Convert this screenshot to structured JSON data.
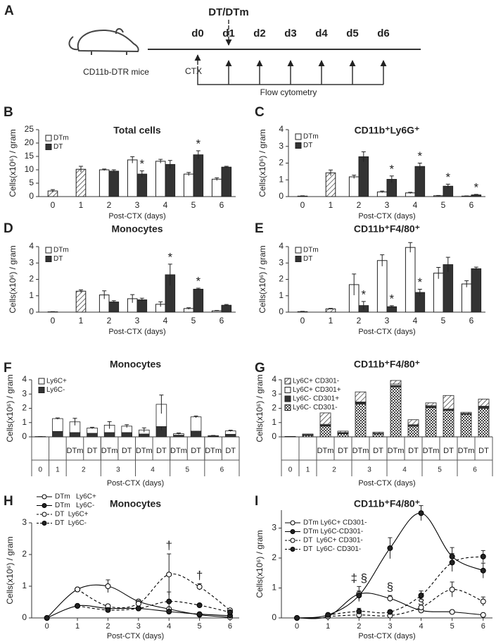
{
  "panel_a": {
    "panel": "A",
    "top_label": "DT/DTm",
    "days": [
      "d0",
      "d1",
      "d2",
      "d3",
      "d4",
      "d5",
      "d6"
    ],
    "mouse_label": "CD11b-DTR mice",
    "start_label": "CTX",
    "readout_label": "Flow cytometry"
  },
  "chart_data": [
    {
      "panel": "B",
      "type": "bar",
      "title": "Total cells",
      "y_label": "Cells(x10⁶) / gram",
      "x_label": "Post-CTX (days)",
      "categories": [
        "0",
        "1",
        "2",
        "3",
        "4",
        "5",
        "6"
      ],
      "ylim": [
        0,
        25
      ],
      "yticks": [
        0,
        5,
        10,
        15,
        20,
        25
      ],
      "series": [
        {
          "color": "#ffffff",
          "pattern": "hatch",
          "values": [
            2.1,
            10.2,
            null,
            null,
            null,
            null,
            null
          ],
          "errors": [
            0.5,
            1.1,
            null,
            null,
            null,
            null,
            null
          ]
        },
        {
          "name": "DTm",
          "color": "#ffffff",
          "values": [
            null,
            null,
            10.0,
            13.7,
            13.2,
            8.4,
            6.5
          ],
          "errors": [
            null,
            null,
            0.3,
            1.2,
            0.7,
            0.6,
            0.5
          ]
        },
        {
          "name": "DT",
          "color": "#333333",
          "values": [
            null,
            null,
            9.5,
            8.4,
            12.0,
            15.6,
            11.0
          ],
          "errors": [
            null,
            null,
            0.5,
            1.2,
            1.5,
            1.5,
            0.3
          ],
          "annotations": [
            null,
            null,
            null,
            "*",
            null,
            "*",
            null
          ]
        }
      ]
    },
    {
      "panel": "C",
      "type": "bar",
      "title": "CD11b⁺Ly6G⁺",
      "y_label": "Cells(x10⁶) / gram",
      "x_label": "Post-CTX (days)",
      "categories": [
        "0",
        "1",
        "2",
        "3",
        "4",
        "5",
        "6"
      ],
      "ylim": [
        0,
        4
      ],
      "yticks": [
        0,
        1,
        2,
        3,
        4
      ],
      "series": [
        {
          "color": "#ffffff",
          "pattern": "hatch",
          "values": [
            0.03,
            1.42,
            null,
            null,
            null,
            null,
            null
          ],
          "errors": [
            0.02,
            0.17,
            null,
            null,
            null,
            null,
            null
          ]
        },
        {
          "name": "DTm",
          "color": "#ffffff",
          "values": [
            null,
            null,
            1.18,
            0.28,
            0.22,
            0.05,
            0.03
          ],
          "errors": [
            null,
            null,
            0.1,
            0.05,
            0.04,
            0.02,
            0.01
          ]
        },
        {
          "name": "DT",
          "color": "#333333",
          "values": [
            null,
            null,
            2.38,
            1.03,
            1.8,
            0.62,
            0.1
          ],
          "errors": [
            null,
            null,
            0.3,
            0.2,
            0.2,
            0.12,
            0.03
          ],
          "annotations": [
            null,
            null,
            null,
            "*",
            "*",
            "*",
            "*"
          ]
        }
      ]
    },
    {
      "panel": "D",
      "type": "bar",
      "title": "Monocytes",
      "y_label": "Cells(x10⁶) / gram",
      "x_label": "Post-CTX (days)",
      "categories": [
        "0",
        "1",
        "2",
        "3",
        "4",
        "5",
        "6"
      ],
      "ylim": [
        0,
        4
      ],
      "yticks": [
        0,
        1,
        2,
        3,
        4
      ],
      "series": [
        {
          "color": "#ffffff",
          "pattern": "hatch",
          "values": [
            0.02,
            1.28,
            null,
            null,
            null,
            null,
            null
          ],
          "errors": [
            0.01,
            0.08,
            null,
            null,
            null,
            null,
            null
          ]
        },
        {
          "name": "DTm",
          "color": "#ffffff",
          "values": [
            null,
            null,
            1.05,
            0.82,
            0.48,
            0.22,
            0.08
          ],
          "errors": [
            null,
            null,
            0.25,
            0.25,
            0.15,
            0.05,
            0.02
          ]
        },
        {
          "name": "DT",
          "color": "#333333",
          "values": [
            null,
            null,
            0.62,
            0.75,
            2.28,
            1.4,
            0.42
          ],
          "errors": [
            null,
            null,
            0.08,
            0.1,
            0.65,
            0.06,
            0.05
          ],
          "annotations": [
            null,
            null,
            null,
            null,
            "*",
            "*",
            null
          ]
        }
      ]
    },
    {
      "panel": "E",
      "type": "bar",
      "title": "CD11b⁺F4/80⁺",
      "y_label": "Cells(x10⁶) / gram",
      "x_label": "Post-CTX (days)",
      "categories": [
        "0",
        "1",
        "2",
        "3",
        "4",
        "5",
        "6"
      ],
      "ylim": [
        0,
        4
      ],
      "yticks": [
        0,
        1,
        2,
        3,
        4
      ],
      "series": [
        {
          "color": "#ffffff",
          "pattern": "hatch",
          "values": [
            0.03,
            0.2,
            null,
            null,
            null,
            null,
            null
          ],
          "errors": [
            0.02,
            0.03,
            null,
            null,
            null,
            null,
            null
          ]
        },
        {
          "name": "DTm",
          "color": "#ffffff",
          "values": [
            null,
            null,
            1.68,
            3.15,
            3.95,
            2.38,
            1.72
          ],
          "errors": [
            null,
            null,
            0.65,
            0.35,
            0.3,
            0.35,
            0.2
          ]
        },
        {
          "name": "DT",
          "color": "#333333",
          "values": [
            null,
            null,
            0.4,
            0.33,
            1.2,
            2.9,
            2.65
          ],
          "errors": [
            null,
            null,
            0.25,
            0.06,
            0.2,
            0.45,
            0.1
          ],
          "annotations": [
            null,
            null,
            "*",
            "*",
            "*",
            null,
            null
          ]
        }
      ]
    },
    {
      "panel": "F",
      "type": "stacked_bar",
      "title": "Monocytes",
      "y_label": "Cells(x10⁶) / gram",
      "x_label": "Post-CTX (days)",
      "categories": [
        null,
        null,
        "DTm",
        "DT",
        "DTm",
        "DT",
        "DTm",
        "DT",
        "DTm",
        "DT",
        "DTm",
        "DT"
      ],
      "groups": [
        {
          "label": "0",
          "span": 1
        },
        {
          "label": "1",
          "span": 1
        },
        {
          "label": "2",
          "span": 2
        },
        {
          "label": "3",
          "span": 2
        },
        {
          "label": "4",
          "span": 2
        },
        {
          "label": "5",
          "span": 2
        },
        {
          "label": "6",
          "span": 2
        }
      ],
      "ylim": [
        0,
        4
      ],
      "yticks": [
        0,
        1,
        2,
        3,
        4
      ],
      "series": [
        {
          "name": "Ly6C+",
          "color": "#ffffff",
          "values": [
            0.01,
            0.9,
            0.75,
            0.37,
            0.52,
            0.45,
            0.28,
            1.56,
            0.1,
            1.0,
            0.01,
            0.24
          ],
          "errors": [
            0,
            0.05,
            0.25,
            0.05,
            0.25,
            0.1,
            0.15,
            0.65,
            0.05,
            0.06,
            0.02,
            0.05
          ]
        },
        {
          "name": "Ly6C-",
          "color": "#333333",
          "values": [
            0.01,
            0.38,
            0.3,
            0.25,
            0.3,
            0.3,
            0.2,
            0.72,
            0.12,
            0.4,
            0.07,
            0.18
          ],
          "errors": [
            0,
            0.04,
            0.05,
            0.03,
            0.05,
            0.05,
            0.04,
            0.25,
            0.02,
            0.05,
            0.01,
            0.03
          ]
        }
      ]
    },
    {
      "panel": "G",
      "type": "stacked_bar",
      "title": "CD11b⁺F4/80⁺",
      "y_label": "Cells(x10⁶) / gram",
      "x_label": "Post-CTX (days)",
      "categories": [
        null,
        null,
        "DTm",
        "DT",
        "DTm",
        "DT",
        "DTm",
        "DT",
        "DTm",
        "DT",
        "DTm",
        "DT"
      ],
      "groups": [
        {
          "label": "0",
          "span": 1
        },
        {
          "label": "1",
          "span": 1
        },
        {
          "label": "2",
          "span": 2
        },
        {
          "label": "3",
          "span": 2
        },
        {
          "label": "4",
          "span": 2
        },
        {
          "label": "5",
          "span": 2
        },
        {
          "label": "6",
          "span": 2
        }
      ],
      "ylim": [
        0,
        4
      ],
      "yticks": [
        0,
        1,
        2,
        3,
        4
      ],
      "series": [
        {
          "name": "Ly6C+ CD301-",
          "color": "#ffffff",
          "pattern": "hatch",
          "values": [
            0.01,
            0.05,
            0.8,
            0.1,
            0.7,
            0.08,
            0.25,
            0.35,
            0.2,
            0.95,
            0.08,
            0.5
          ]
        },
        {
          "name": "Ly6C+ CD301+",
          "color": "#ffffff",
          "values": [
            0,
            0.03,
            0.05,
            0.03,
            0.05,
            0.02,
            0.1,
            0.05,
            0.05,
            0.05,
            0.02,
            0.05
          ]
        },
        {
          "name": "Ly6C- CD301+",
          "color": "#333333",
          "values": [
            0,
            0.02,
            0.08,
            0.05,
            0.1,
            0.03,
            0.1,
            0.05,
            0.08,
            0.05,
            0.04,
            0.1
          ]
        },
        {
          "name": "Ly6C- CD301-",
          "color": "#ffffff",
          "pattern": "checker",
          "values": [
            0.02,
            0.1,
            0.75,
            0.22,
            2.3,
            0.2,
            3.5,
            0.75,
            2.05,
            1.85,
            1.58,
            2.0
          ]
        }
      ]
    },
    {
      "panel": "H",
      "type": "line",
      "title": "Monocytes",
      "y_label": "Cells(x10⁶) / gram",
      "x_label": "Post-CTX (days)",
      "x": [
        0,
        1,
        2,
        3,
        4,
        5,
        6
      ],
      "xlim": [
        -0.5,
        6.3
      ],
      "xticks": [
        0,
        1,
        2,
        3,
        4,
        5,
        6
      ],
      "ylim": [
        0,
        3
      ],
      "yticks": [
        0,
        1,
        2,
        3
      ],
      "series": [
        {
          "name": "DTm   Ly6C+",
          "color": "#000000",
          "marker": "open",
          "dash": false,
          "values": [
            0,
            0.9,
            1.0,
            0.52,
            0.28,
            0.1,
            0.02
          ],
          "errors": [
            0,
            0.05,
            0.2,
            0.05,
            0.05,
            0.02,
            0.01
          ]
        },
        {
          "name": "DTm   Ly6C-",
          "color": "#000000",
          "marker": "filled",
          "dash": false,
          "values": [
            0,
            0.38,
            0.3,
            0.3,
            0.2,
            0.12,
            0.07
          ],
          "errors": [
            0,
            0.03,
            0.03,
            0.05,
            0.05,
            0.02,
            0.01
          ]
        },
        {
          "name": "DT  Ly6C+",
          "color": "#000000",
          "marker": "open",
          "dash": true,
          "values": [
            null,
            0.9,
            0.37,
            0.45,
            1.37,
            0.98,
            0.24
          ],
          "errors": [
            null,
            0.05,
            0.05,
            0.1,
            0.65,
            0.1,
            0.05
          ],
          "annotations": [
            null,
            null,
            null,
            null,
            "†",
            "†",
            null
          ]
        },
        {
          "name": "DT  Ly6C-",
          "color": "#000000",
          "marker": "filled",
          "dash": true,
          "values": [
            null,
            0.38,
            0.25,
            0.3,
            0.52,
            0.4,
            0.18
          ],
          "errors": [
            null,
            0.03,
            0.04,
            0.05,
            0.3,
            0.05,
            0.03
          ]
        }
      ]
    },
    {
      "panel": "I",
      "type": "line",
      "title": "CD11b⁺F4/80⁺",
      "y_label": "Cells(x10⁶) / gram",
      "x_label": "Post-CTX (days)",
      "x": [
        0,
        1,
        2,
        3,
        4,
        5,
        6
      ],
      "xlim": [
        -0.5,
        6.3
      ],
      "xticks": [
        0,
        1,
        2,
        3,
        4,
        5,
        6
      ],
      "ylim": [
        0,
        3.6
      ],
      "yticks": [
        0,
        1,
        2,
        3
      ],
      "series": [
        {
          "name": "DTm Ly6C+ CD301-",
          "color": "#000000",
          "marker": "open",
          "dash": false,
          "values": [
            0,
            0.05,
            0.8,
            0.65,
            0.25,
            0.2,
            0.1
          ],
          "errors": [
            0,
            0.02,
            0.25,
            0.1,
            0.05,
            0.05,
            0.02
          ],
          "annotations": [
            null,
            null,
            "‡ §",
            "§",
            "§",
            null,
            null
          ]
        },
        {
          "name": "DTm Ly6C-CD301-",
          "color": "#000000",
          "marker": "filled",
          "dash": false,
          "values": [
            0,
            0.1,
            0.75,
            2.33,
            3.5,
            2.05,
            1.58
          ],
          "errors": [
            0,
            0.03,
            0.15,
            0.35,
            0.25,
            0.3,
            0.25
          ]
        },
        {
          "name": "DT  Ly6C+ CD301-",
          "color": "#000000",
          "marker": "open",
          "dash": true,
          "values": [
            null,
            0.05,
            0.1,
            0.08,
            0.35,
            0.95,
            0.55
          ],
          "errors": [
            null,
            0.02,
            0.03,
            0.03,
            0.05,
            0.25,
            0.15
          ]
        },
        {
          "name": "DT  Ly6C- CD301-",
          "color": "#000000",
          "marker": "filled",
          "dash": true,
          "values": [
            null,
            0.1,
            0.22,
            0.2,
            0.75,
            1.85,
            2.05
          ],
          "errors": [
            null,
            0.03,
            0.1,
            0.05,
            0.15,
            0.3,
            0.2
          ]
        }
      ]
    }
  ]
}
